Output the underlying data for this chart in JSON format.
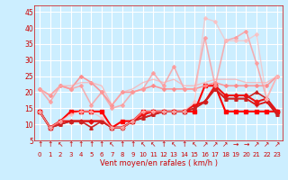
{
  "xlabel": "Vent moyen/en rafales ( km/h )",
  "bg_color": "#cceeff",
  "grid_color": "#ffffff",
  "xlim": [
    -0.5,
    23.5
  ],
  "ylim": [
    5,
    47
  ],
  "yticks": [
    5,
    10,
    15,
    20,
    25,
    30,
    35,
    40,
    45
  ],
  "xticks": [
    0,
    1,
    2,
    3,
    4,
    5,
    6,
    7,
    8,
    9,
    10,
    11,
    12,
    13,
    14,
    15,
    16,
    17,
    18,
    19,
    20,
    21,
    22,
    23
  ],
  "lines": [
    {
      "x": [
        0,
        1,
        2,
        3,
        4,
        5,
        6,
        7,
        8,
        9,
        10,
        11,
        12,
        13,
        14,
        15,
        16,
        17,
        18,
        19,
        20,
        21,
        22,
        23
      ],
      "y": [
        14,
        9,
        11,
        14,
        14,
        14,
        14,
        9,
        11,
        11,
        14,
        14,
        14,
        14,
        14,
        14,
        22,
        22,
        14,
        14,
        14,
        14,
        14,
        14
      ],
      "color": "#ff0000",
      "lw": 1.5,
      "marker": "s",
      "ms": 2.5,
      "alpha": 1.0
    },
    {
      "x": [
        0,
        1,
        2,
        3,
        4,
        5,
        6,
        7,
        8,
        9,
        10,
        11,
        12,
        13,
        14,
        15,
        16,
        17,
        18,
        19,
        20,
        21,
        22,
        23
      ],
      "y": [
        14,
        9,
        11,
        11,
        11,
        11,
        11,
        9,
        9,
        11,
        13,
        14,
        14,
        14,
        14,
        16,
        17,
        22,
        19,
        19,
        19,
        17,
        18,
        14
      ],
      "color": "#ee1111",
      "lw": 1.5,
      "marker": "D",
      "ms": 2.5,
      "alpha": 1.0
    },
    {
      "x": [
        0,
        1,
        2,
        3,
        4,
        5,
        6,
        7,
        8,
        9,
        10,
        11,
        12,
        13,
        14,
        15,
        16,
        17,
        18,
        19,
        20,
        21,
        22,
        23
      ],
      "y": [
        14,
        9,
        10,
        11,
        11,
        11,
        11,
        9,
        9,
        11,
        12,
        13,
        14,
        14,
        14,
        15,
        17,
        21,
        18,
        18,
        18,
        16,
        17,
        13
      ],
      "color": "#dd1111",
      "lw": 1.3,
      "marker": "+",
      "ms": 3,
      "alpha": 1.0
    },
    {
      "x": [
        0,
        1,
        2,
        3,
        4,
        5,
        6,
        7,
        8,
        9,
        10,
        11,
        12,
        13,
        14,
        15,
        16,
        17,
        18,
        19,
        20,
        21,
        22,
        23
      ],
      "y": [
        14,
        9,
        10,
        11,
        11,
        9,
        11,
        9,
        9,
        11,
        12,
        13,
        14,
        14,
        14,
        15,
        17,
        21,
        18,
        18,
        18,
        20,
        18,
        13
      ],
      "color": "#cc2222",
      "lw": 1.2,
      "marker": "^",
      "ms": 2.5,
      "alpha": 1.0
    },
    {
      "x": [
        0,
        1,
        2,
        3,
        4,
        5,
        6,
        7,
        8,
        9,
        10,
        11,
        12,
        13,
        14,
        15,
        16,
        17,
        18,
        19,
        20,
        21,
        22,
        23
      ],
      "y": [
        21,
        19,
        22,
        21,
        25,
        23,
        20,
        16,
        20,
        20,
        21,
        22,
        21,
        21,
        21,
        21,
        22,
        23,
        22,
        22,
        22,
        22,
        22,
        25
      ],
      "color": "#ff8888",
      "lw": 1.2,
      "marker": "D",
      "ms": 2.0,
      "alpha": 0.85
    },
    {
      "x": [
        0,
        1,
        2,
        3,
        4,
        5,
        6,
        7,
        8,
        9,
        10,
        11,
        12,
        13,
        14,
        15,
        16,
        17,
        18,
        19,
        20,
        21,
        22,
        23
      ],
      "y": [
        21,
        17,
        22,
        21,
        22,
        16,
        20,
        15,
        16,
        20,
        21,
        26,
        22,
        28,
        21,
        21,
        37,
        22,
        36,
        37,
        39,
        29,
        18,
        25
      ],
      "color": "#ff9999",
      "lw": 1.2,
      "marker": "D",
      "ms": 2.0,
      "alpha": 0.75
    },
    {
      "x": [
        0,
        1,
        2,
        3,
        4,
        5,
        6,
        7,
        8,
        9,
        10,
        11,
        12,
        13,
        14,
        15,
        16,
        17,
        18,
        19,
        20,
        21,
        22,
        23
      ],
      "y": [
        21,
        19,
        22,
        22,
        23,
        23,
        22,
        16,
        20,
        21,
        23,
        24,
        23,
        24,
        22,
        22,
        23,
        24,
        24,
        24,
        23,
        23,
        23,
        25
      ],
      "color": "#ffaaaa",
      "lw": 1.0,
      "marker": null,
      "ms": 0,
      "alpha": 0.7
    },
    {
      "x": [
        0,
        1,
        2,
        3,
        4,
        5,
        6,
        7,
        8,
        9,
        10,
        11,
        12,
        13,
        14,
        15,
        16,
        17,
        18,
        19,
        20,
        21,
        22,
        23
      ],
      "y": [
        14,
        9,
        11,
        13,
        14,
        14,
        12,
        9,
        9,
        11,
        14,
        14,
        14,
        14,
        14,
        17,
        43,
        42,
        36,
        36,
        36,
        38,
        18,
        25
      ],
      "color": "#ffbbbb",
      "lw": 1.0,
      "marker": "D",
      "ms": 2.0,
      "alpha": 0.65
    }
  ],
  "arrows": [
    "↑",
    "↑",
    "↖",
    "↑",
    "↑",
    "↑",
    "↑",
    "↖",
    "↑",
    "↑",
    "↖",
    "↖",
    "↑",
    "↖",
    "↑",
    "↖",
    "↗",
    "↗",
    "↗",
    "→",
    "→",
    "↗",
    "↗",
    "↗"
  ]
}
